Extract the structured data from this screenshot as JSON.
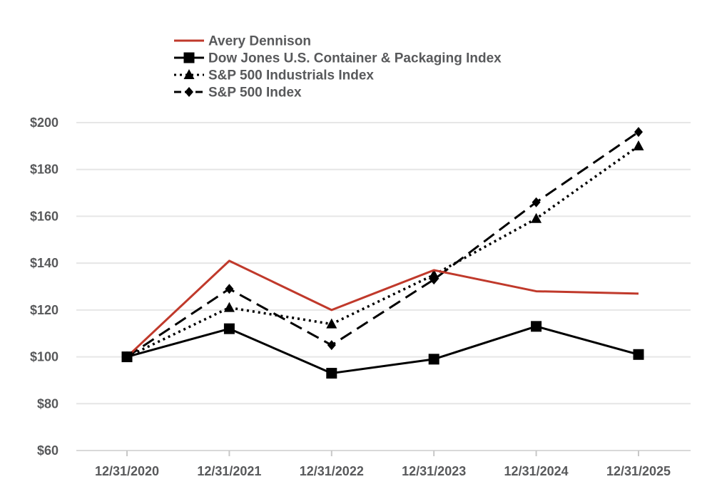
{
  "chart_data": {
    "type": "line",
    "title": "",
    "xlabel": "",
    "ylabel": "",
    "categories": [
      "12/31/2020",
      "12/31/2021",
      "12/31/2022",
      "12/31/2023",
      "12/31/2024",
      "12/31/2025"
    ],
    "ylim": [
      60,
      200
    ],
    "yticks": [
      60,
      80,
      100,
      120,
      140,
      160,
      180,
      200
    ],
    "ytick_labels": [
      "$60",
      "$80",
      "$100",
      "$120",
      "$140",
      "$160",
      "$180",
      "$200"
    ],
    "grid": true,
    "legend_position": "top-left",
    "series": [
      {
        "name": "Avery Dennison",
        "color": "#c0392b",
        "dash": "solid",
        "marker": "none",
        "values": [
          100,
          141,
          120,
          137,
          128,
          127
        ]
      },
      {
        "name": "Dow Jones U.S. Container & Packaging Index",
        "color": "#000000",
        "dash": "solid",
        "marker": "square",
        "values": [
          100,
          112,
          93,
          99,
          113,
          101
        ]
      },
      {
        "name": "S&P 500 Industrials Index",
        "color": "#000000",
        "dash": "dotted",
        "marker": "triangle",
        "values": [
          100,
          121,
          114,
          135,
          159,
          190
        ]
      },
      {
        "name": "S&P 500 Index",
        "color": "#000000",
        "dash": "dashed",
        "marker": "diamond",
        "values": [
          100,
          129,
          105,
          133,
          166,
          196
        ]
      }
    ]
  }
}
